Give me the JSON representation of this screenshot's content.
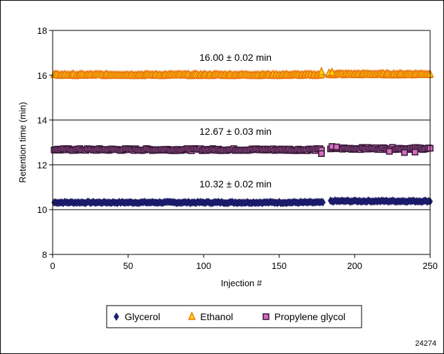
{
  "chart_data": {
    "type": "scatter",
    "title": "",
    "xlabel": "Injection #",
    "ylabel": "Retention time (min)",
    "xlim": [
      0,
      250
    ],
    "ylim": [
      8,
      18
    ],
    "x_ticks": [
      "0",
      "50",
      "100",
      "150",
      "200",
      "250"
    ],
    "y_ticks": [
      "8",
      "10",
      "12",
      "14",
      "16",
      "18"
    ],
    "grid": "horizontal",
    "legend_position": "bottom",
    "series": [
      {
        "name": "Glycerol",
        "marker": "diamond",
        "color": "#1f1f7a",
        "mean": 10.32,
        "segments": [
          [
            1,
            179,
            10.32
          ],
          [
            184,
            250,
            10.38
          ]
        ]
      },
      {
        "name": "Ethanol",
        "marker": "triangle",
        "color": "#ffd700",
        "edge": "#e8770e",
        "mean": 16.0,
        "segments": [
          [
            1,
            178,
            16.0
          ],
          [
            183,
            250,
            16.03
          ]
        ],
        "outliers": [
          [
            178,
            16.15
          ],
          [
            183,
            16.08
          ],
          [
            185,
            16.12
          ]
        ]
      },
      {
        "name": "Propylene glycol",
        "marker": "square",
        "color": "#d56ec0",
        "edge": "#3b1b3b",
        "mean": 12.67,
        "segments": [
          [
            1,
            178,
            12.68
          ],
          [
            184,
            250,
            12.73
          ]
        ],
        "outliers": [
          [
            178,
            12.5
          ],
          [
            185,
            12.82
          ],
          [
            188,
            12.8
          ],
          [
            223,
            12.6
          ],
          [
            233,
            12.55
          ],
          [
            240,
            12.57
          ]
        ]
      }
    ],
    "annotations": [
      {
        "text": "16.00 ± 0.02 min",
        "y": 16.8
      },
      {
        "text": "12.67 ± 0.03 min",
        "y": 13.5
      },
      {
        "text": "10.32 ± 0.02 min",
        "y": 11.15
      }
    ]
  },
  "figure_id": "24274"
}
